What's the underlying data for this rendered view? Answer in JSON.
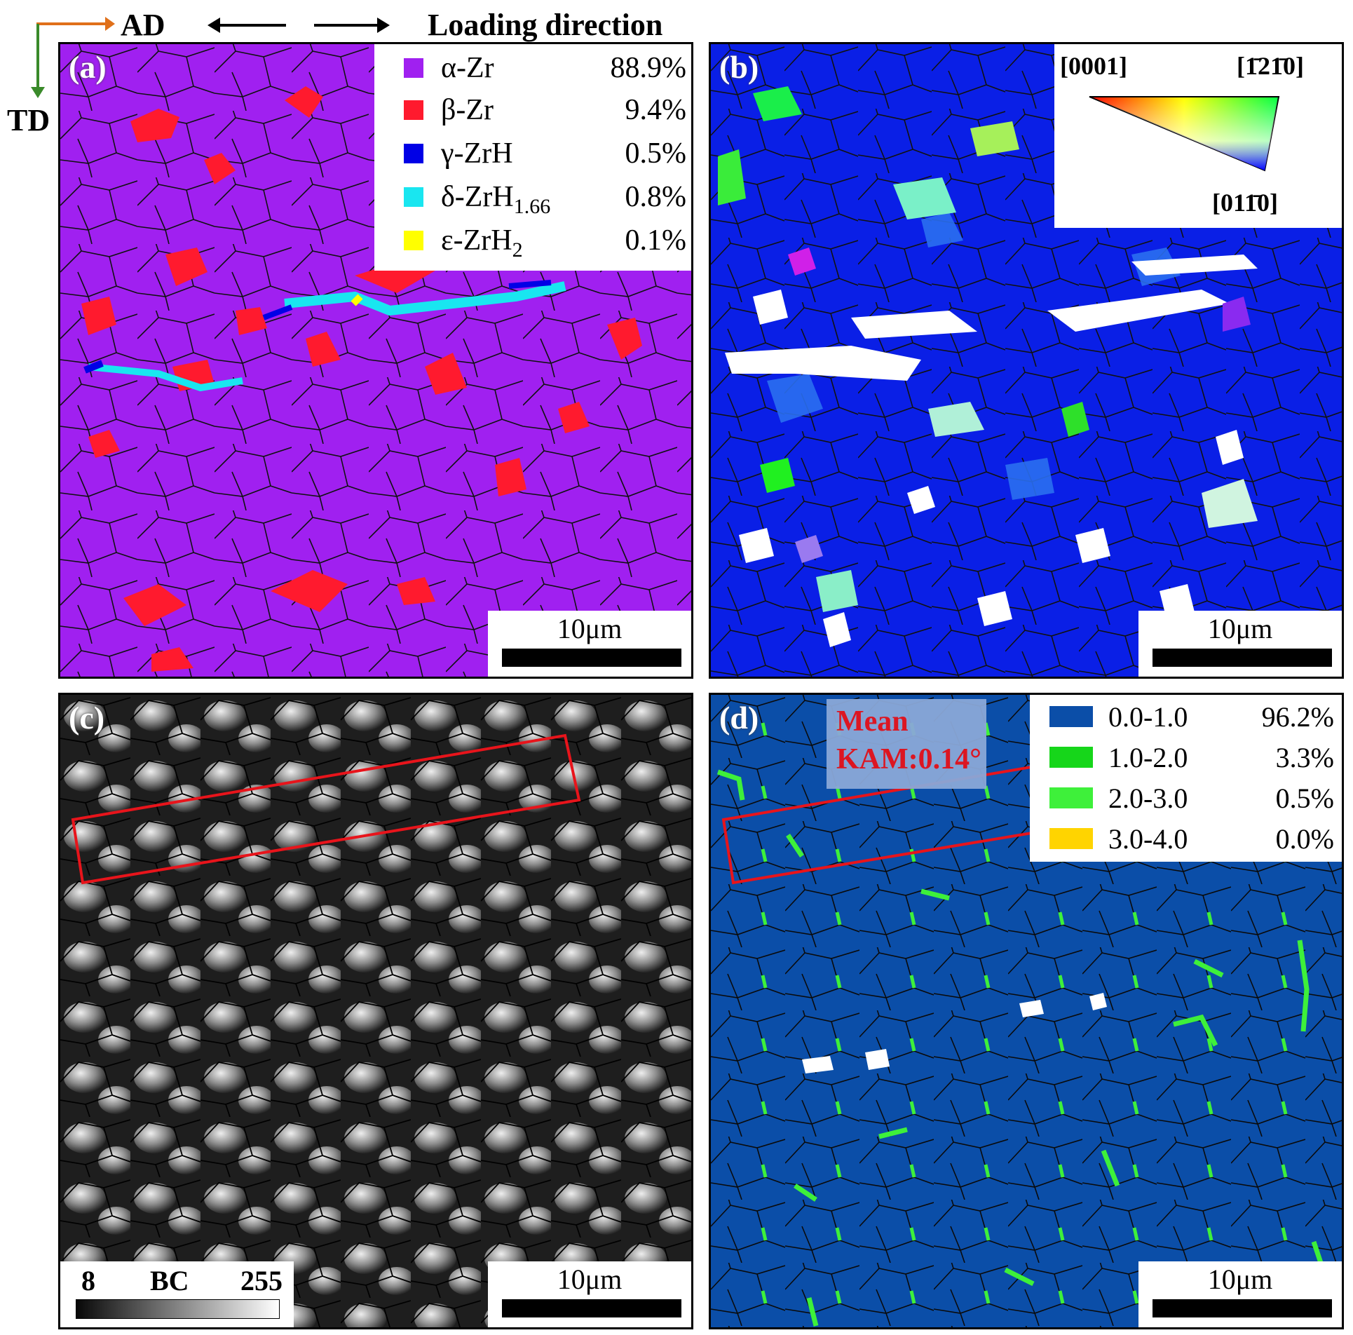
{
  "header": {
    "ad_label": "AD",
    "td_label": "TD",
    "loading_label": "Loading direction"
  },
  "colors": {
    "alpha_zr": "#a020f0",
    "beta_zr": "#ff1a2e",
    "gamma_zrh": "#0000e6",
    "delta_zrh": "#19e6f0",
    "epsilon_zrh2": "#ffff00",
    "ad_arrow": "#e0701a",
    "td_arrow": "#3a8a2a",
    "kam_0_1": "#0b4ea8",
    "kam_1_2": "#16d61a",
    "kam_2_3": "#3ef03a",
    "kam_3_4": "#ffd400",
    "highlight_box": "#e8141b"
  },
  "panel_a": {
    "label": "(a)",
    "scale": "10μm",
    "legend": [
      {
        "name": "α-Zr",
        "sub": "",
        "value": "88.9%",
        "color": "#a020f0"
      },
      {
        "name": "β-Zr",
        "sub": "",
        "value": "9.4%",
        "color": "#ff1a2e"
      },
      {
        "name": "γ-ZrH",
        "sub": "",
        "value": "0.5%",
        "color": "#0000e6"
      },
      {
        "name": "δ-ZrH",
        "sub": "1.66",
        "value": "0.8%",
        "color": "#19e6f0"
      },
      {
        "name": "ε-ZrH",
        "sub": "2",
        "value": "0.1%",
        "color": "#ffff00"
      }
    ]
  },
  "panel_b": {
    "label": "(b)",
    "scale": "10μm",
    "ipf": {
      "corner_0001": "[0001]",
      "corner_m1210": "[1̄21̄0]",
      "corner_0110": "[011̄0]"
    }
  },
  "panel_c": {
    "label": "(c)",
    "scale": "10μm",
    "bc_min": "8",
    "bc_label": "BC",
    "bc_max": "255"
  },
  "panel_d": {
    "label": "(d)",
    "scale": "10μm",
    "mean_line1": "Mean",
    "mean_line2": "KAM:0.14°",
    "legend": [
      {
        "range": "0.0-1.0",
        "value": "96.2%",
        "color": "#0b4ea8"
      },
      {
        "range": "1.0-2.0",
        "value": "3.3%",
        "color": "#16d61a"
      },
      {
        "range": "2.0-3.0",
        "value": "0.5%",
        "color": "#3ef03a"
      },
      {
        "range": "3.0-4.0",
        "value": "0.0%",
        "color": "#ffd400"
      }
    ]
  }
}
